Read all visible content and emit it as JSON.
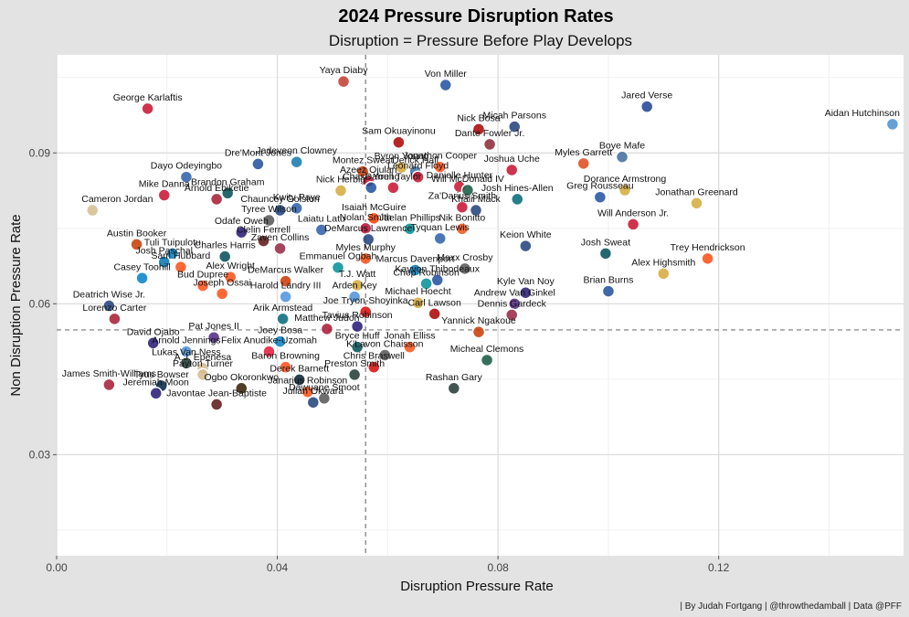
{
  "chart_data": {
    "type": "scatter",
    "title": "2024 Pressure Disruption Rates",
    "subtitle": "Disruption =  Pressure Before Play Develops",
    "xlabel": "Disruption Pressure Rate",
    "ylabel": "Non Disruption Pressure Rate",
    "caption": "| By Judah Fortgang | @throwthedamball | Data @PFF",
    "xlim": [
      0.0,
      0.1535
    ],
    "ylim": [
      0.0099,
      0.1095
    ],
    "xticks": [
      0.0,
      0.04,
      0.08,
      0.12
    ],
    "xtick_labels": [
      "0.00",
      "0.04",
      "0.08",
      "0.12"
    ],
    "yticks": [
      0.03,
      0.06,
      0.09
    ],
    "ytick_labels": [
      "0.03",
      "0.06",
      "0.09"
    ],
    "reference_lines": {
      "x": 0.056,
      "y": 0.0548
    },
    "grid": true,
    "points": [
      {
        "name": "Aidan Hutchinson",
        "x": 0.1515,
        "y": 0.0957,
        "color": "#4a8fd0"
      },
      {
        "name": "Yaya Diaby",
        "x": 0.052,
        "y": 0.1042,
        "color": "#c0392b"
      },
      {
        "name": "Von Miller",
        "x": 0.0705,
        "y": 0.1035,
        "color": "#1f4fa0"
      },
      {
        "name": "George Karlaftis",
        "x": 0.0165,
        "y": 0.0988,
        "color": "#c8102e"
      },
      {
        "name": "Jared Verse",
        "x": 0.107,
        "y": 0.0992,
        "color": "#1c3f94"
      },
      {
        "name": "Micah Parsons",
        "x": 0.083,
        "y": 0.0952,
        "color": "#1f3f7a"
      },
      {
        "name": "Nick Bosa",
        "x": 0.0765,
        "y": 0.0947,
        "color": "#aa0000"
      },
      {
        "name": "Sam Okuayinonu",
        "x": 0.062,
        "y": 0.0921,
        "color": "#aa0000"
      },
      {
        "name": "Dante Fowler Jr.",
        "x": 0.0785,
        "y": 0.0917,
        "color": "#8b2332"
      },
      {
        "name": "Boye Mafe",
        "x": 0.1025,
        "y": 0.0892,
        "color": "#3d6a9c"
      },
      {
        "name": "Jadeveon Clowney",
        "x": 0.0435,
        "y": 0.0882,
        "color": "#1177aa"
      },
      {
        "name": "Dre'Mont Jones",
        "x": 0.0365,
        "y": 0.0878,
        "color": "#1e4e9c"
      },
      {
        "name": "Byron Young",
        "x": 0.0625,
        "y": 0.0871,
        "color": "#d4a93a"
      },
      {
        "name": "Jonathon Cooper",
        "x": 0.0695,
        "y": 0.0872,
        "color": "#fb4f14"
      },
      {
        "name": "Myles Garrett",
        "x": 0.0955,
        "y": 0.0879,
        "color": "#e0491a"
      },
      {
        "name": "Montez Sweat",
        "x": 0.0555,
        "y": 0.0863,
        "color": "#c83803"
      },
      {
        "name": "Derick Hall",
        "x": 0.065,
        "y": 0.0863,
        "color": "#3e6fa0"
      },
      {
        "name": "Joshua Uche",
        "x": 0.0825,
        "y": 0.0866,
        "color": "#c8102e"
      },
      {
        "name": "Dayo Odeyingbo",
        "x": 0.0235,
        "y": 0.0852,
        "color": "#2a5ea8"
      },
      {
        "name": "Azeez Ojulari",
        "x": 0.0565,
        "y": 0.0844,
        "color": "#c8102e"
      },
      {
        "name": "Leonard Floyd",
        "x": 0.0655,
        "y": 0.0852,
        "color": "#c8102e"
      },
      {
        "name": "Danielle Hunter",
        "x": 0.073,
        "y": 0.0833,
        "color": "#c8102e"
      },
      {
        "name": "Brandon Graham",
        "x": 0.031,
        "y": 0.082,
        "color": "#004c54"
      },
      {
        "name": "Nick Herbig",
        "x": 0.0515,
        "y": 0.0825,
        "color": "#d4a93a"
      },
      {
        "name": "Chase Young",
        "x": 0.057,
        "y": 0.0831,
        "color": "#1e4e9c"
      },
      {
        "name": "Darrell Taylor",
        "x": 0.061,
        "y": 0.0831,
        "color": "#c8102e"
      },
      {
        "name": "Will McDonald IV",
        "x": 0.0745,
        "y": 0.0826,
        "color": "#125740"
      },
      {
        "name": "Dorance Armstrong",
        "x": 0.103,
        "y": 0.0826,
        "color": "#d4a93a"
      },
      {
        "name": "Greg Rousseau",
        "x": 0.0985,
        "y": 0.0812,
        "color": "#1f4fa0"
      },
      {
        "name": "Mike Danna",
        "x": 0.0195,
        "y": 0.0816,
        "color": "#c8102e"
      },
      {
        "name": "Arnold Ebiketie",
        "x": 0.029,
        "y": 0.0808,
        "color": "#a71930"
      },
      {
        "name": "Josh Hines-Allen",
        "x": 0.0835,
        "y": 0.0808,
        "color": "#006778"
      },
      {
        "name": "Jonathan Greenard",
        "x": 0.116,
        "y": 0.08,
        "color": "#d4a93a"
      },
      {
        "name": "Chauncey Golston",
        "x": 0.0405,
        "y": 0.0786,
        "color": "#1f3f7a"
      },
      {
        "name": "Kwity Paye",
        "x": 0.0435,
        "y": 0.079,
        "color": "#2a5ea8"
      },
      {
        "name": "Za'Darius Smith",
        "x": 0.0735,
        "y": 0.0792,
        "color": "#c8102e"
      },
      {
        "name": "Cameron Jordan",
        "x": 0.0065,
        "y": 0.0786,
        "color": "#d3bc8d"
      },
      {
        "name": "Khalil Mack",
        "x": 0.076,
        "y": 0.0786,
        "color": "#1f3f7a"
      },
      {
        "name": "Tyree Wilson",
        "x": 0.0385,
        "y": 0.0766,
        "color": "#555555"
      },
      {
        "name": "Isaiah McGuire",
        "x": 0.0575,
        "y": 0.077,
        "color": "#ff3c00"
      },
      {
        "name": "Will Anderson Jr.",
        "x": 0.1045,
        "y": 0.0758,
        "color": "#c8102e"
      },
      {
        "name": "Odafe Oweh",
        "x": 0.0335,
        "y": 0.0742,
        "color": "#241773"
      },
      {
        "name": "Laiatu Latu",
        "x": 0.048,
        "y": 0.0747,
        "color": "#2a5ea8"
      },
      {
        "name": "Nolan Smith",
        "x": 0.056,
        "y": 0.075,
        "color": "#ba0c2f"
      },
      {
        "name": "Jaelan Phillips",
        "x": 0.064,
        "y": 0.0749,
        "color": "#008e97"
      },
      {
        "name": "Nik Bonitto",
        "x": 0.0735,
        "y": 0.0749,
        "color": "#fb4f14"
      },
      {
        "name": "Clelin Ferrell",
        "x": 0.0375,
        "y": 0.0725,
        "color": "#5a1414"
      },
      {
        "name": "Zaven Collins",
        "x": 0.0405,
        "y": 0.071,
        "color": "#97233f"
      },
      {
        "name": "Austin Booker",
        "x": 0.0145,
        "y": 0.0718,
        "color": "#c83803"
      },
      {
        "name": "Tuli Tuipulotu",
        "x": 0.021,
        "y": 0.07,
        "color": "#0080c6"
      },
      {
        "name": "DeMarcus Lawrence",
        "x": 0.0565,
        "y": 0.0728,
        "color": "#1f3f7a"
      },
      {
        "name": "Tyquan Lewis",
        "x": 0.0695,
        "y": 0.073,
        "color": "#2a5ea8"
      },
      {
        "name": "Keion White",
        "x": 0.085,
        "y": 0.0715,
        "color": "#1f3f7a"
      },
      {
        "name": "Josh Paschal",
        "x": 0.0195,
        "y": 0.0683,
        "color": "#0076b6"
      },
      {
        "name": "Charles Harris",
        "x": 0.0305,
        "y": 0.0694,
        "color": "#004c54"
      },
      {
        "name": "Myles Murphy",
        "x": 0.056,
        "y": 0.069,
        "color": "#fb4f14"
      },
      {
        "name": "Trey Hendrickson",
        "x": 0.118,
        "y": 0.069,
        "color": "#fb4f14"
      },
      {
        "name": "Josh Sweat",
        "x": 0.0995,
        "y": 0.07,
        "color": "#004c54"
      },
      {
        "name": "Maxx Crosby",
        "x": 0.074,
        "y": 0.067,
        "color": "#555555"
      },
      {
        "name": "Sam Hubbard",
        "x": 0.0225,
        "y": 0.0673,
        "color": "#fb4f14"
      },
      {
        "name": "Emmanuel Ogbah",
        "x": 0.051,
        "y": 0.0672,
        "color": "#008e97"
      },
      {
        "name": "Marcus Davenport",
        "x": 0.065,
        "y": 0.0667,
        "color": "#0076b6"
      },
      {
        "name": "Alex Highsmith",
        "x": 0.11,
        "y": 0.066,
        "color": "#d4a93a"
      },
      {
        "name": "Alex Wright",
        "x": 0.0315,
        "y": 0.0653,
        "color": "#fb4f14"
      },
      {
        "name": "Kayvon Thibodeaux",
        "x": 0.069,
        "y": 0.0647,
        "color": "#1e4e9c"
      },
      {
        "name": "Casey Toohill",
        "x": 0.0155,
        "y": 0.0651,
        "color": "#0080c6"
      },
      {
        "name": "Bud Dupree",
        "x": 0.0265,
        "y": 0.0636,
        "color": "#fb4f14"
      },
      {
        "name": "DeMarcus Walker",
        "x": 0.0415,
        "y": 0.0645,
        "color": "#c83803"
      },
      {
        "name": "T.J. Watt",
        "x": 0.0545,
        "y": 0.0637,
        "color": "#d4a93a"
      },
      {
        "name": "Chop Robinson",
        "x": 0.067,
        "y": 0.064,
        "color": "#008e97"
      },
      {
        "name": "Kyle Van Noy",
        "x": 0.085,
        "y": 0.0622,
        "color": "#241773"
      },
      {
        "name": "Brian Burns",
        "x": 0.1,
        "y": 0.0625,
        "color": "#1e4e9c"
      },
      {
        "name": "Joseph Ossai",
        "x": 0.03,
        "y": 0.062,
        "color": "#fb4f14"
      },
      {
        "name": "Harold Landry III",
        "x": 0.0415,
        "y": 0.0614,
        "color": "#4b92db"
      },
      {
        "name": "Arden Key",
        "x": 0.054,
        "y": 0.0614,
        "color": "#4b92db"
      },
      {
        "name": "Michael Hoecht",
        "x": 0.0655,
        "y": 0.0602,
        "color": "#d4a93a"
      },
      {
        "name": "Andrew Van Ginkel",
        "x": 0.083,
        "y": 0.06,
        "color": "#4f2683"
      },
      {
        "name": "Deatrich Wise Jr.",
        "x": 0.0095,
        "y": 0.0596,
        "color": "#1f3f7a"
      },
      {
        "name": "Joe Tryon-Shoyinka",
        "x": 0.056,
        "y": 0.0584,
        "color": "#d50a0a"
      },
      {
        "name": "Arik Armstead",
        "x": 0.041,
        "y": 0.057,
        "color": "#006778"
      },
      {
        "name": "Carl Lawson",
        "x": 0.0685,
        "y": 0.058,
        "color": "#aa0000"
      },
      {
        "name": "Dennis Gardeck",
        "x": 0.0825,
        "y": 0.0578,
        "color": "#97233f"
      },
      {
        "name": "Lorenzo Carter",
        "x": 0.0105,
        "y": 0.057,
        "color": "#a71930"
      },
      {
        "name": "Matthew Judon",
        "x": 0.049,
        "y": 0.055,
        "color": "#a71930"
      },
      {
        "name": "Tavius Robinson",
        "x": 0.0545,
        "y": 0.0555,
        "color": "#241773"
      },
      {
        "name": "Yannick Ngakoue",
        "x": 0.0765,
        "y": 0.0544,
        "color": "#c83803"
      },
      {
        "name": "Pat Jones II",
        "x": 0.0285,
        "y": 0.0533,
        "color": "#4f2683"
      },
      {
        "name": "David Ojabo",
        "x": 0.0175,
        "y": 0.0522,
        "color": "#241773"
      },
      {
        "name": "Joey Bosa",
        "x": 0.0405,
        "y": 0.0525,
        "color": "#0080c6"
      },
      {
        "name": "Bryce Huff",
        "x": 0.0545,
        "y": 0.0514,
        "color": "#004c54"
      },
      {
        "name": "Jonah Elliss",
        "x": 0.064,
        "y": 0.0514,
        "color": "#fb4f14"
      },
      {
        "name": "Arnold Jennings",
        "x": 0.0235,
        "y": 0.0505,
        "color": "#4b92db"
      },
      {
        "name": "Felix Anudike-Uzomah",
        "x": 0.0385,
        "y": 0.0505,
        "color": "#e31837"
      },
      {
        "name": "K'Lavon Chaisson",
        "x": 0.0595,
        "y": 0.0498,
        "color": "#555555"
      },
      {
        "name": "Micheal Clemons",
        "x": 0.078,
        "y": 0.0488,
        "color": "#125740"
      },
      {
        "name": "Lukas Van Ness",
        "x": 0.0235,
        "y": 0.0482,
        "color": "#203731"
      },
      {
        "name": "A.J. Epenesa",
        "x": 0.0265,
        "y": 0.0472,
        "color": "#d3bc8d"
      },
      {
        "name": "Baron Browning",
        "x": 0.0415,
        "y": 0.0474,
        "color": "#fb4f14"
      },
      {
        "name": "Chris Braswell",
        "x": 0.0575,
        "y": 0.0474,
        "color": "#d50a0a"
      },
      {
        "name": "Payton Turner",
        "x": 0.0265,
        "y": 0.0459,
        "color": "#d3bc8d"
      },
      {
        "name": "Derek Barnett",
        "x": 0.044,
        "y": 0.0449,
        "color": "#03202f"
      },
      {
        "name": "Preston Smith",
        "x": 0.054,
        "y": 0.0459,
        "color": "#203731"
      },
      {
        "name": "James Smith-Williams",
        "x": 0.0095,
        "y": 0.0439,
        "color": "#a71930"
      },
      {
        "name": "Tyus Bowser",
        "x": 0.019,
        "y": 0.0437,
        "color": "#002244"
      },
      {
        "name": "Ogbo Okoronkwo",
        "x": 0.0335,
        "y": 0.0432,
        "color": "#311d00"
      },
      {
        "name": "Janarius Robinson",
        "x": 0.0455,
        "y": 0.0425,
        "color": "#fb4f14"
      },
      {
        "name": "Rashan Gary",
        "x": 0.072,
        "y": 0.0432,
        "color": "#203731"
      },
      {
        "name": "Jeremiah Moon",
        "x": 0.018,
        "y": 0.0422,
        "color": "#241773"
      },
      {
        "name": "Dawuane Smoot",
        "x": 0.0485,
        "y": 0.0412,
        "color": "#555555"
      },
      {
        "name": "Javontae Jean-Baptiste",
        "x": 0.029,
        "y": 0.04,
        "color": "#5a1414"
      },
      {
        "name": "Julian Okwara",
        "x": 0.0465,
        "y": 0.0404,
        "color": "#1f3f7a"
      }
    ]
  }
}
